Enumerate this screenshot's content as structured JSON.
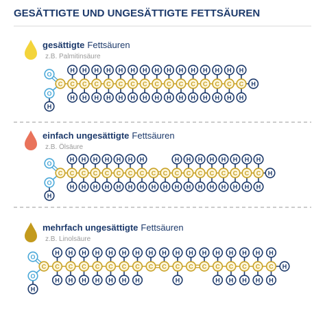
{
  "header": {
    "title": "GESÄTTIGTE UND UNGESÄTTIGTE FETTSÄUREN"
  },
  "atoms": {
    "C": "C",
    "H": "H",
    "O": "O"
  },
  "sections": [
    {
      "title_bold": "gesättigte",
      "title_rest": "Fettsäuren",
      "example": "z.B. Palmitinsäure"
    },
    {
      "title_bold": "einfach ungesättigte",
      "title_rest": "Fettsäuren",
      "example": "z.B. Ölsäure"
    },
    {
      "title_bold": "mehrfach ungesättigte",
      "title_rest": "Fettsäuren",
      "example": "z.B. Linolsäure"
    }
  ]
}
